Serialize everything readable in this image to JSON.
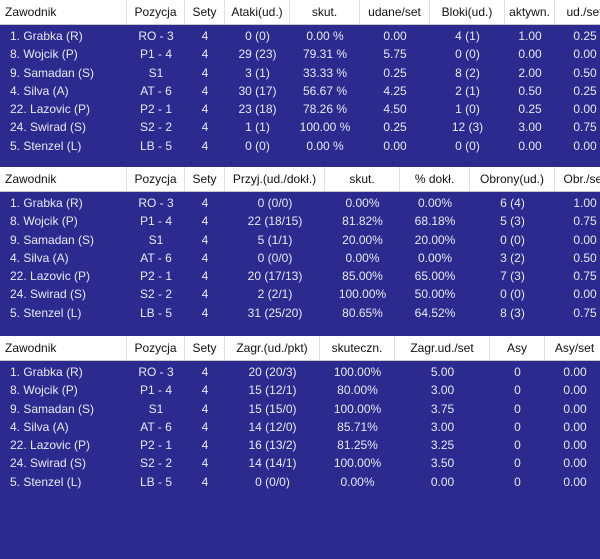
{
  "colors": {
    "background": "#2b2a8e",
    "header": "#ffffff",
    "text": "#e8e8f4"
  },
  "tables": [
    {
      "headers": [
        "Zawodnik",
        "Pozycja",
        "Sety",
        "Ataki(ud.)",
        "skut.",
        "udane/set",
        "Bloki(ud.)",
        "aktywn.",
        "ud./set"
      ],
      "rows": [
        [
          "1. Grabka (R)",
          "RO - 3",
          "4",
          "0 (0)",
          "0.00 %",
          "0.00",
          "4 (1)",
          "1.00",
          "0.25"
        ],
        [
          "8. Wojcik (P)",
          "P1 - 4",
          "4",
          "29 (23)",
          "79.31 %",
          "5.75",
          "0 (0)",
          "0.00",
          "0.00"
        ],
        [
          "9. Samadan (S)",
          "S1",
          "4",
          "3 (1)",
          "33.33 %",
          "0.25",
          "8 (2)",
          "2.00",
          "0.50"
        ],
        [
          "4. Silva (A)",
          "AT - 6",
          "4",
          "30 (17)",
          "56.67 %",
          "4.25",
          "2 (1)",
          "0.50",
          "0.25"
        ],
        [
          "22. Lazovic (P)",
          "P2 - 1",
          "4",
          "23 (18)",
          "78.26 %",
          "4.50",
          "1 (0)",
          "0.25",
          "0.00"
        ],
        [
          "24. Swirad (S)",
          "S2 - 2",
          "4",
          "1 (1)",
          "100.00 %",
          "0.25",
          "12 (3)",
          "3.00",
          "0.75"
        ],
        [
          "5. Stenzel (L)",
          "LB - 5",
          "4",
          "0 (0)",
          "0.00 %",
          "0.00",
          "0 (0)",
          "0.00",
          "0.00"
        ]
      ]
    },
    {
      "headers": [
        "Zawodnik",
        "Pozycja",
        "Sety",
        "Przyj.(ud./dokł.)",
        "skut.",
        "% dokł.",
        "Obrony(ud.)",
        "Obr./set"
      ],
      "rows": [
        [
          "1. Grabka (R)",
          "RO - 3",
          "4",
          "0 (0/0)",
          "0.00%",
          "0.00%",
          "6 (4)",
          "1.00"
        ],
        [
          "8. Wojcik (P)",
          "P1 - 4",
          "4",
          "22 (18/15)",
          "81.82%",
          "68.18%",
          "5 (3)",
          "0.75"
        ],
        [
          "9. Samadan (S)",
          "S1",
          "4",
          "5 (1/1)",
          "20.00%",
          "20.00%",
          "0 (0)",
          "0.00"
        ],
        [
          "4. Silva (A)",
          "AT - 6",
          "4",
          "0 (0/0)",
          "0.00%",
          "0.00%",
          "3 (2)",
          "0.50"
        ],
        [
          "22. Lazovic (P)",
          "P2 - 1",
          "4",
          "20 (17/13)",
          "85.00%",
          "65.00%",
          "7 (3)",
          "0.75"
        ],
        [
          "24. Swirad (S)",
          "S2 - 2",
          "4",
          "2 (2/1)",
          "100.00%",
          "50.00%",
          "0 (0)",
          "0.00"
        ],
        [
          "5. Stenzel (L)",
          "LB - 5",
          "4",
          "31 (25/20)",
          "80.65%",
          "64.52%",
          "8 (3)",
          "0.75"
        ]
      ]
    },
    {
      "headers": [
        "Zawodnik",
        "Pozycja",
        "Sety",
        "Zagr.(ud./pkt)",
        "skuteczn.",
        "Zagr.ud./set",
        "Asy",
        "Asy/set"
      ],
      "rows": [
        [
          "1. Grabka (R)",
          "RO - 3",
          "4",
          "20 (20/3)",
          "100.00%",
          "5.00",
          "0",
          "0.00"
        ],
        [
          "8. Wojcik (P)",
          "P1 - 4",
          "4",
          "15 (12/1)",
          "80.00%",
          "3.00",
          "0",
          "0.00"
        ],
        [
          "9. Samadan (S)",
          "S1",
          "4",
          "15 (15/0)",
          "100.00%",
          "3.75",
          "0",
          "0.00"
        ],
        [
          "4. Silva (A)",
          "AT - 6",
          "4",
          "14 (12/0)",
          "85.71%",
          "3.00",
          "0",
          "0.00"
        ],
        [
          "22. Lazovic (P)",
          "P2 - 1",
          "4",
          "16 (13/2)",
          "81.25%",
          "3.25",
          "0",
          "0.00"
        ],
        [
          "24. Swirad (S)",
          "S2 - 2",
          "4",
          "14 (14/1)",
          "100.00%",
          "3.50",
          "0",
          "0.00"
        ],
        [
          "5. Stenzel (L)",
          "LB - 5",
          "4",
          "0 (0/0)",
          "0.00%",
          "0.00",
          "0",
          "0.00"
        ]
      ]
    }
  ]
}
